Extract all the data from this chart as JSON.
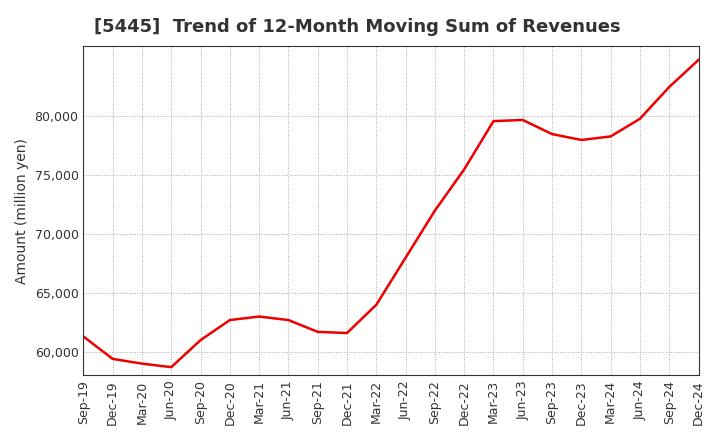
{
  "title": "[5445]  Trend of 12-Month Moving Sum of Revenues",
  "ylabel": "Amount (million yen)",
  "background_color": "#ffffff",
  "grid_color": "#aaaaaa",
  "line_color": "#ee0000",
  "x_labels": [
    "Sep-19",
    "Dec-19",
    "Mar-20",
    "Jun-20",
    "Sep-20",
    "Dec-20",
    "Mar-21",
    "Jun-21",
    "Sep-21",
    "Dec-21",
    "Mar-22",
    "Jun-22",
    "Sep-22",
    "Dec-22",
    "Mar-23",
    "Jun-23",
    "Sep-23",
    "Dec-23",
    "Mar-24",
    "Jun-24",
    "Sep-24",
    "Dec-24"
  ],
  "values": [
    61300,
    59400,
    59000,
    58700,
    61000,
    62700,
    63000,
    62700,
    61700,
    61600,
    64000,
    68000,
    72000,
    75500,
    79600,
    79700,
    78500,
    78000,
    78300,
    79800,
    82500,
    84800
  ],
  "ylim": [
    58000,
    86000
  ],
  "yticks": [
    60000,
    65000,
    70000,
    75000,
    80000
  ],
  "title_fontsize": 13,
  "axis_fontsize": 10,
  "tick_fontsize": 9
}
